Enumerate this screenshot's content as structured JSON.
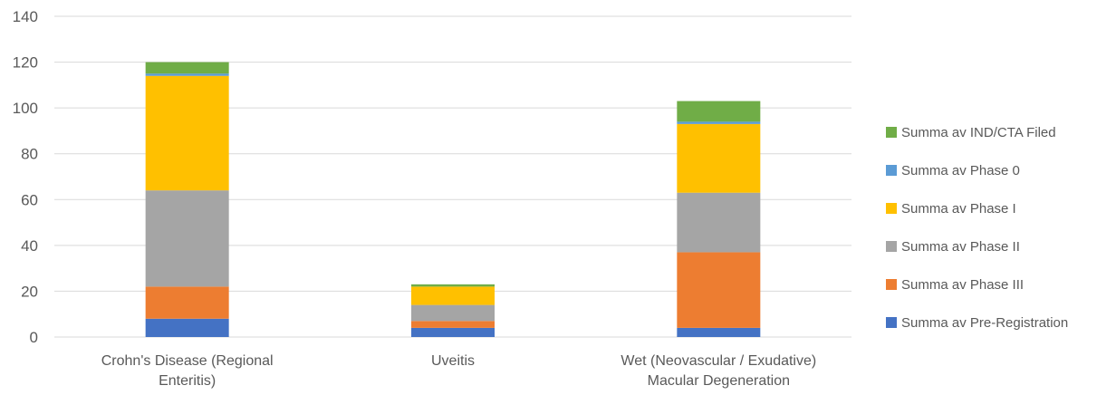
{
  "chart_data": {
    "type": "bar",
    "stacked": true,
    "categories": [
      [
        "Crohn's Disease (Regional",
        "Enteritis)"
      ],
      [
        "Uveitis"
      ],
      [
        "Wet (Neovascular / Exudative)",
        "Macular Degeneration"
      ]
    ],
    "series": [
      {
        "name": "Summa av Pre-Registration",
        "color": "#4472c4",
        "values": [
          8,
          4,
          4
        ]
      },
      {
        "name": "Summa av Phase III",
        "color": "#ed7d31",
        "values": [
          14,
          3,
          33
        ]
      },
      {
        "name": "Summa av Phase II",
        "color": "#a5a5a5",
        "values": [
          42,
          7,
          26
        ]
      },
      {
        "name": "Summa av Phase I",
        "color": "#ffc000",
        "values": [
          50,
          8,
          30
        ]
      },
      {
        "name": "Summa av Phase 0",
        "color": "#5b9bd5",
        "values": [
          1,
          0,
          1
        ]
      },
      {
        "name": "Summa av IND/CTA Filed",
        "color": "#70ad47",
        "values": [
          5,
          1,
          9
        ]
      }
    ],
    "yticks": [
      0,
      20,
      40,
      60,
      80,
      100,
      120,
      140
    ],
    "ylim": [
      0,
      140
    ],
    "grid": true,
    "legend_position": "right",
    "legend_order": "reversed"
  }
}
